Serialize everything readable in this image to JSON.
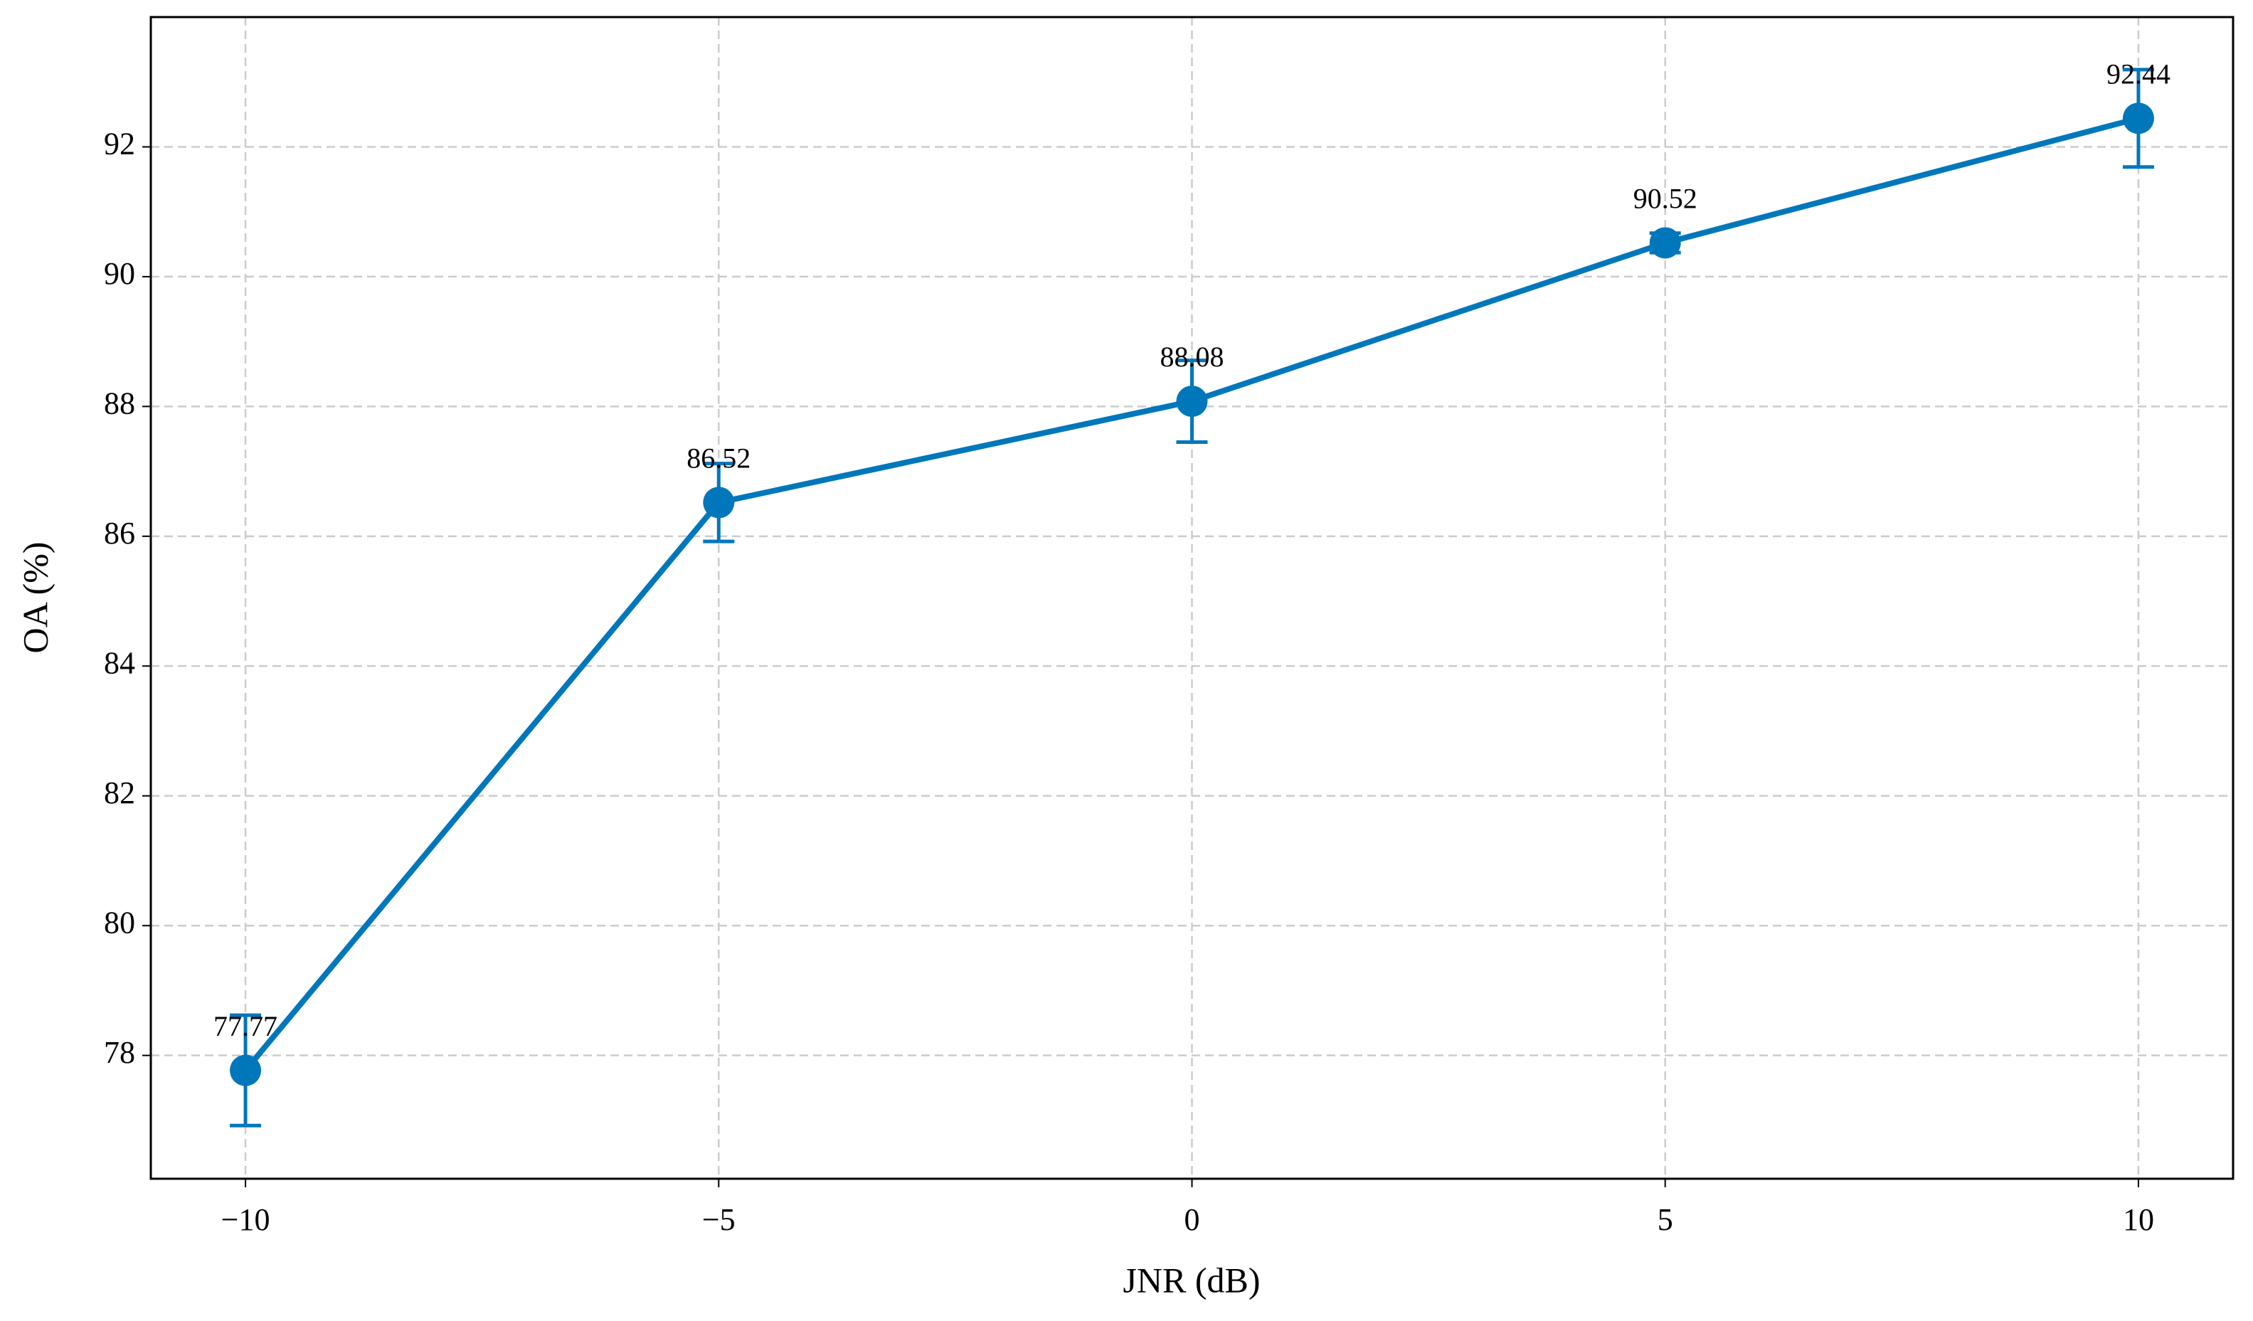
{
  "chart_data": {
    "type": "line",
    "x_label": "JNR (dB)",
    "y_label": "OA (%)",
    "x": [
      -10,
      -5,
      0,
      5,
      10
    ],
    "series": [
      {
        "color": "#0077bb",
        "values": [
          77.77,
          86.52,
          88.08,
          90.52,
          92.44
        ],
        "errors": [
          0.85,
          0.6,
          0.63,
          0.15,
          0.75
        ]
      }
    ],
    "xlim": [
      -11,
      11
    ],
    "ylim": [
      76.1,
      94.0
    ],
    "xticks": [
      {
        "value": -10,
        "label": "−10"
      },
      {
        "value": -5,
        "label": "−5"
      },
      0,
      5,
      10
    ],
    "yticks": [
      78,
      80,
      82,
      84,
      86,
      88,
      90,
      92
    ],
    "grid": true
  }
}
